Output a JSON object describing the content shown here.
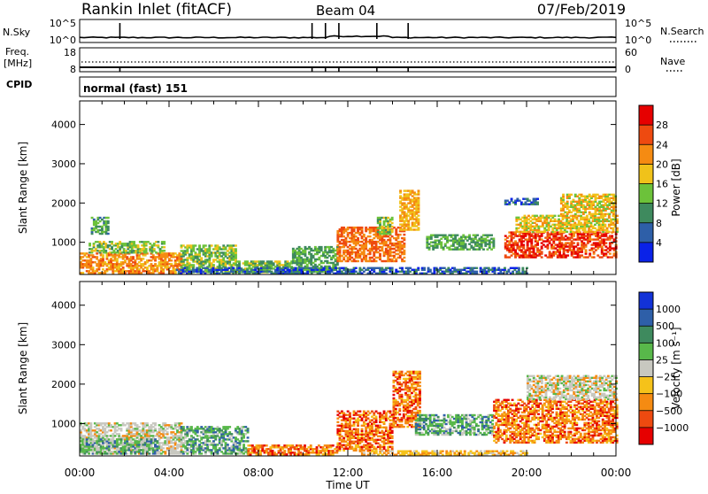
{
  "header": {
    "station": "Rankin Inlet (fitACF)",
    "beam": "Beam 04",
    "date": "07/Feb/2019"
  },
  "info_panels": {
    "nsky_label": "N.Sky",
    "nsky_ticks": [
      "10^5",
      "10^0"
    ],
    "nsearch_label": "N.Search",
    "nsearch_ticks": [
      "10^5",
      "10^0"
    ],
    "freq_label": "Freq.",
    "freq_unit": "[MHz]",
    "freq_ticks": [
      "18",
      "8"
    ],
    "nave_label": "Nave",
    "nave_ticks": [
      "60",
      "0"
    ],
    "cpid_label": "CPID",
    "cpid_text": "normal (fast) 151"
  },
  "chart_data": [
    {
      "type": "heatmap",
      "panel": "power",
      "ylabel": "Slant Range [km]",
      "xlabel": "Time UT",
      "x_ticks": [
        "00:00",
        "04:00",
        "08:00",
        "12:00",
        "16:00",
        "20:00",
        "00:00"
      ],
      "xlim_hours": [
        0,
        24
      ],
      "y_ticks": [
        1000,
        2000,
        3000,
        4000
      ],
      "ylim": [
        180,
        4600
      ],
      "colorbar_label": "Power [dB]",
      "colorbar_ticks": [
        "4",
        "8",
        "12",
        "16",
        "20",
        "24",
        "28"
      ],
      "colorbar_colors": [
        "#0a22e8",
        "#2e5fa8",
        "#3e8a5e",
        "#6cc23a",
        "#f0c21a",
        "#f58b12",
        "#ee4a10",
        "#e60000"
      ],
      "colorbar_range": [
        0,
        32
      ],
      "regions": [
        {
          "t": [
            0,
            4.5
          ],
          "r": [
            200,
            720
          ],
          "v": 22
        },
        {
          "t": [
            0.4,
            3.8
          ],
          "r": [
            720,
            1000
          ],
          "v": 14
        },
        {
          "t": [
            0.5,
            1.3
          ],
          "r": [
            1200,
            1650
          ],
          "v": 11
        },
        {
          "t": [
            4.5,
            7.0
          ],
          "r": [
            220,
            900
          ],
          "v": 14
        },
        {
          "t": [
            7.0,
            9.5
          ],
          "r": [
            220,
            500
          ],
          "v": 13
        },
        {
          "t": [
            9.5,
            11.5
          ],
          "r": [
            230,
            900
          ],
          "v": 12
        },
        {
          "t": [
            11.5,
            14.5
          ],
          "r": [
            500,
            1400
          ],
          "v": 24
        },
        {
          "t": [
            13.3,
            14.0
          ],
          "r": [
            1200,
            1650
          ],
          "v": 14
        },
        {
          "t": [
            14.3,
            15.2
          ],
          "r": [
            1300,
            2300
          ],
          "v": 20
        },
        {
          "t": [
            15.5,
            18.5
          ],
          "r": [
            800,
            1200
          ],
          "v": 12
        },
        {
          "t": [
            19.0,
            24.0
          ],
          "r": [
            600,
            1250
          ],
          "v": 27
        },
        {
          "t": [
            19.5,
            24.0
          ],
          "r": [
            1250,
            1700
          ],
          "v": 18
        },
        {
          "t": [
            21.5,
            24.0
          ],
          "r": [
            1700,
            2200
          ],
          "v": 18
        },
        {
          "t": [
            19.0,
            20.5
          ],
          "r": [
            1950,
            2100
          ],
          "v": 6
        },
        {
          "t": [
            4.3,
            20.0
          ],
          "r": [
            190,
            330
          ],
          "v": 6
        }
      ]
    },
    {
      "type": "heatmap",
      "panel": "velocity",
      "ylabel": "Slant Range [km]",
      "xlabel": "Time UT",
      "x_ticks": [
        "00:00",
        "04:00",
        "08:00",
        "12:00",
        "16:00",
        "20:00",
        "00:00"
      ],
      "xlim_hours": [
        0,
        24
      ],
      "y_ticks": [
        1000,
        2000,
        3000,
        4000
      ],
      "ylim": [
        180,
        4600
      ],
      "colorbar_label": "Velocity [m s⁻¹]",
      "colorbar_ticks": [
        "1000",
        "500",
        "100",
        "25",
        "−25",
        "−100",
        "−500",
        "−1000"
      ],
      "colorbar_colors": [
        "#1232d8",
        "#2e5fa8",
        "#3e8a5e",
        "#58b84a",
        "#c8c8c0",
        "#f5c21a",
        "#f58b12",
        "#ee4a10",
        "#e60000"
      ],
      "regions": [
        {
          "t": [
            0,
            4.5
          ],
          "r": [
            220,
            1000
          ],
          "v": "gray"
        },
        {
          "t": [
            0,
            3.5
          ],
          "r": [
            220,
            600
          ],
          "v": "green"
        },
        {
          "t": [
            4.5,
            7.5
          ],
          "r": [
            220,
            900
          ],
          "v": "green"
        },
        {
          "t": [
            7.5,
            11.5
          ],
          "r": [
            200,
            450
          ],
          "v": "orange"
        },
        {
          "t": [
            11.5,
            14.0
          ],
          "r": [
            300,
            1300
          ],
          "v": "orange"
        },
        {
          "t": [
            14.0,
            15.2
          ],
          "r": [
            900,
            2300
          ],
          "v": "orange"
        },
        {
          "t": [
            15.0,
            18.5
          ],
          "r": [
            700,
            1200
          ],
          "v": "green"
        },
        {
          "t": [
            18.5,
            24.0
          ],
          "r": [
            500,
            1600
          ],
          "v": "orange"
        },
        {
          "t": [
            20.0,
            24.0
          ],
          "r": [
            1600,
            2200
          ],
          "v": "gray"
        },
        {
          "t": [
            12.5,
            20.0
          ],
          "r": [
            190,
            320
          ],
          "v": "yellow"
        }
      ]
    }
  ]
}
